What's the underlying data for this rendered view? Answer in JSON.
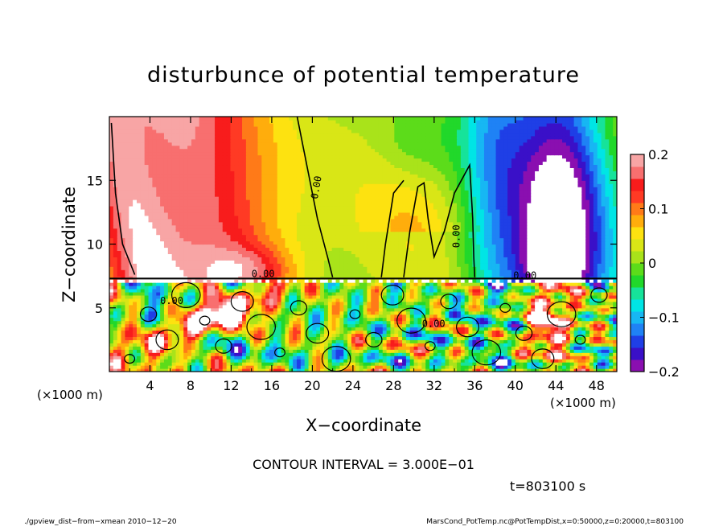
{
  "chart_data": {
    "type": "heatmap",
    "title": "disturbunce of potential temperature",
    "xlabel": "X−coordinate",
    "ylabel": "Z−coordinate",
    "x_unit": "(×1000 m)",
    "y_unit": "(×1000 m)",
    "xlim": [
      0,
      50
    ],
    "ylim": [
      0,
      20
    ],
    "x_ticks": [
      4,
      8,
      12,
      16,
      20,
      24,
      28,
      32,
      36,
      40,
      44,
      48
    ],
    "y_ticks": [
      5,
      10,
      15
    ],
    "colorbar": {
      "range": [
        -0.2,
        0.2
      ],
      "ticks": [
        0.2,
        0.1,
        0,
        -0.1,
        -0.2
      ],
      "tick_labels": [
        "0.2",
        "0.1",
        "0",
        "−0.1",
        "−0.2"
      ],
      "colors": [
        "#8a0fb0",
        "#3a10c8",
        "#1f3fe6",
        "#1f82f5",
        "#17b7f3",
        "#00e5e5",
        "#16e39a",
        "#21d82a",
        "#5cdc1a",
        "#a9e31a",
        "#d9e616",
        "#fde210",
        "#ffad0c",
        "#ff7a18",
        "#ff3a24",
        "#f81c1c",
        "#f86f6f",
        "#f8a5a5"
      ]
    },
    "contour_label": "0.00",
    "contour_interval_text": "CONTOUR INTERVAL = 3.000E−01",
    "time_text": "t=803100 s"
  },
  "footer": {
    "left": "./gpview_dist−from−xmean  2010−12−20",
    "right": "MarsCond_PotTemp.nc@PotTempDist,x=0:50000,z=0:20000,t=803100"
  }
}
